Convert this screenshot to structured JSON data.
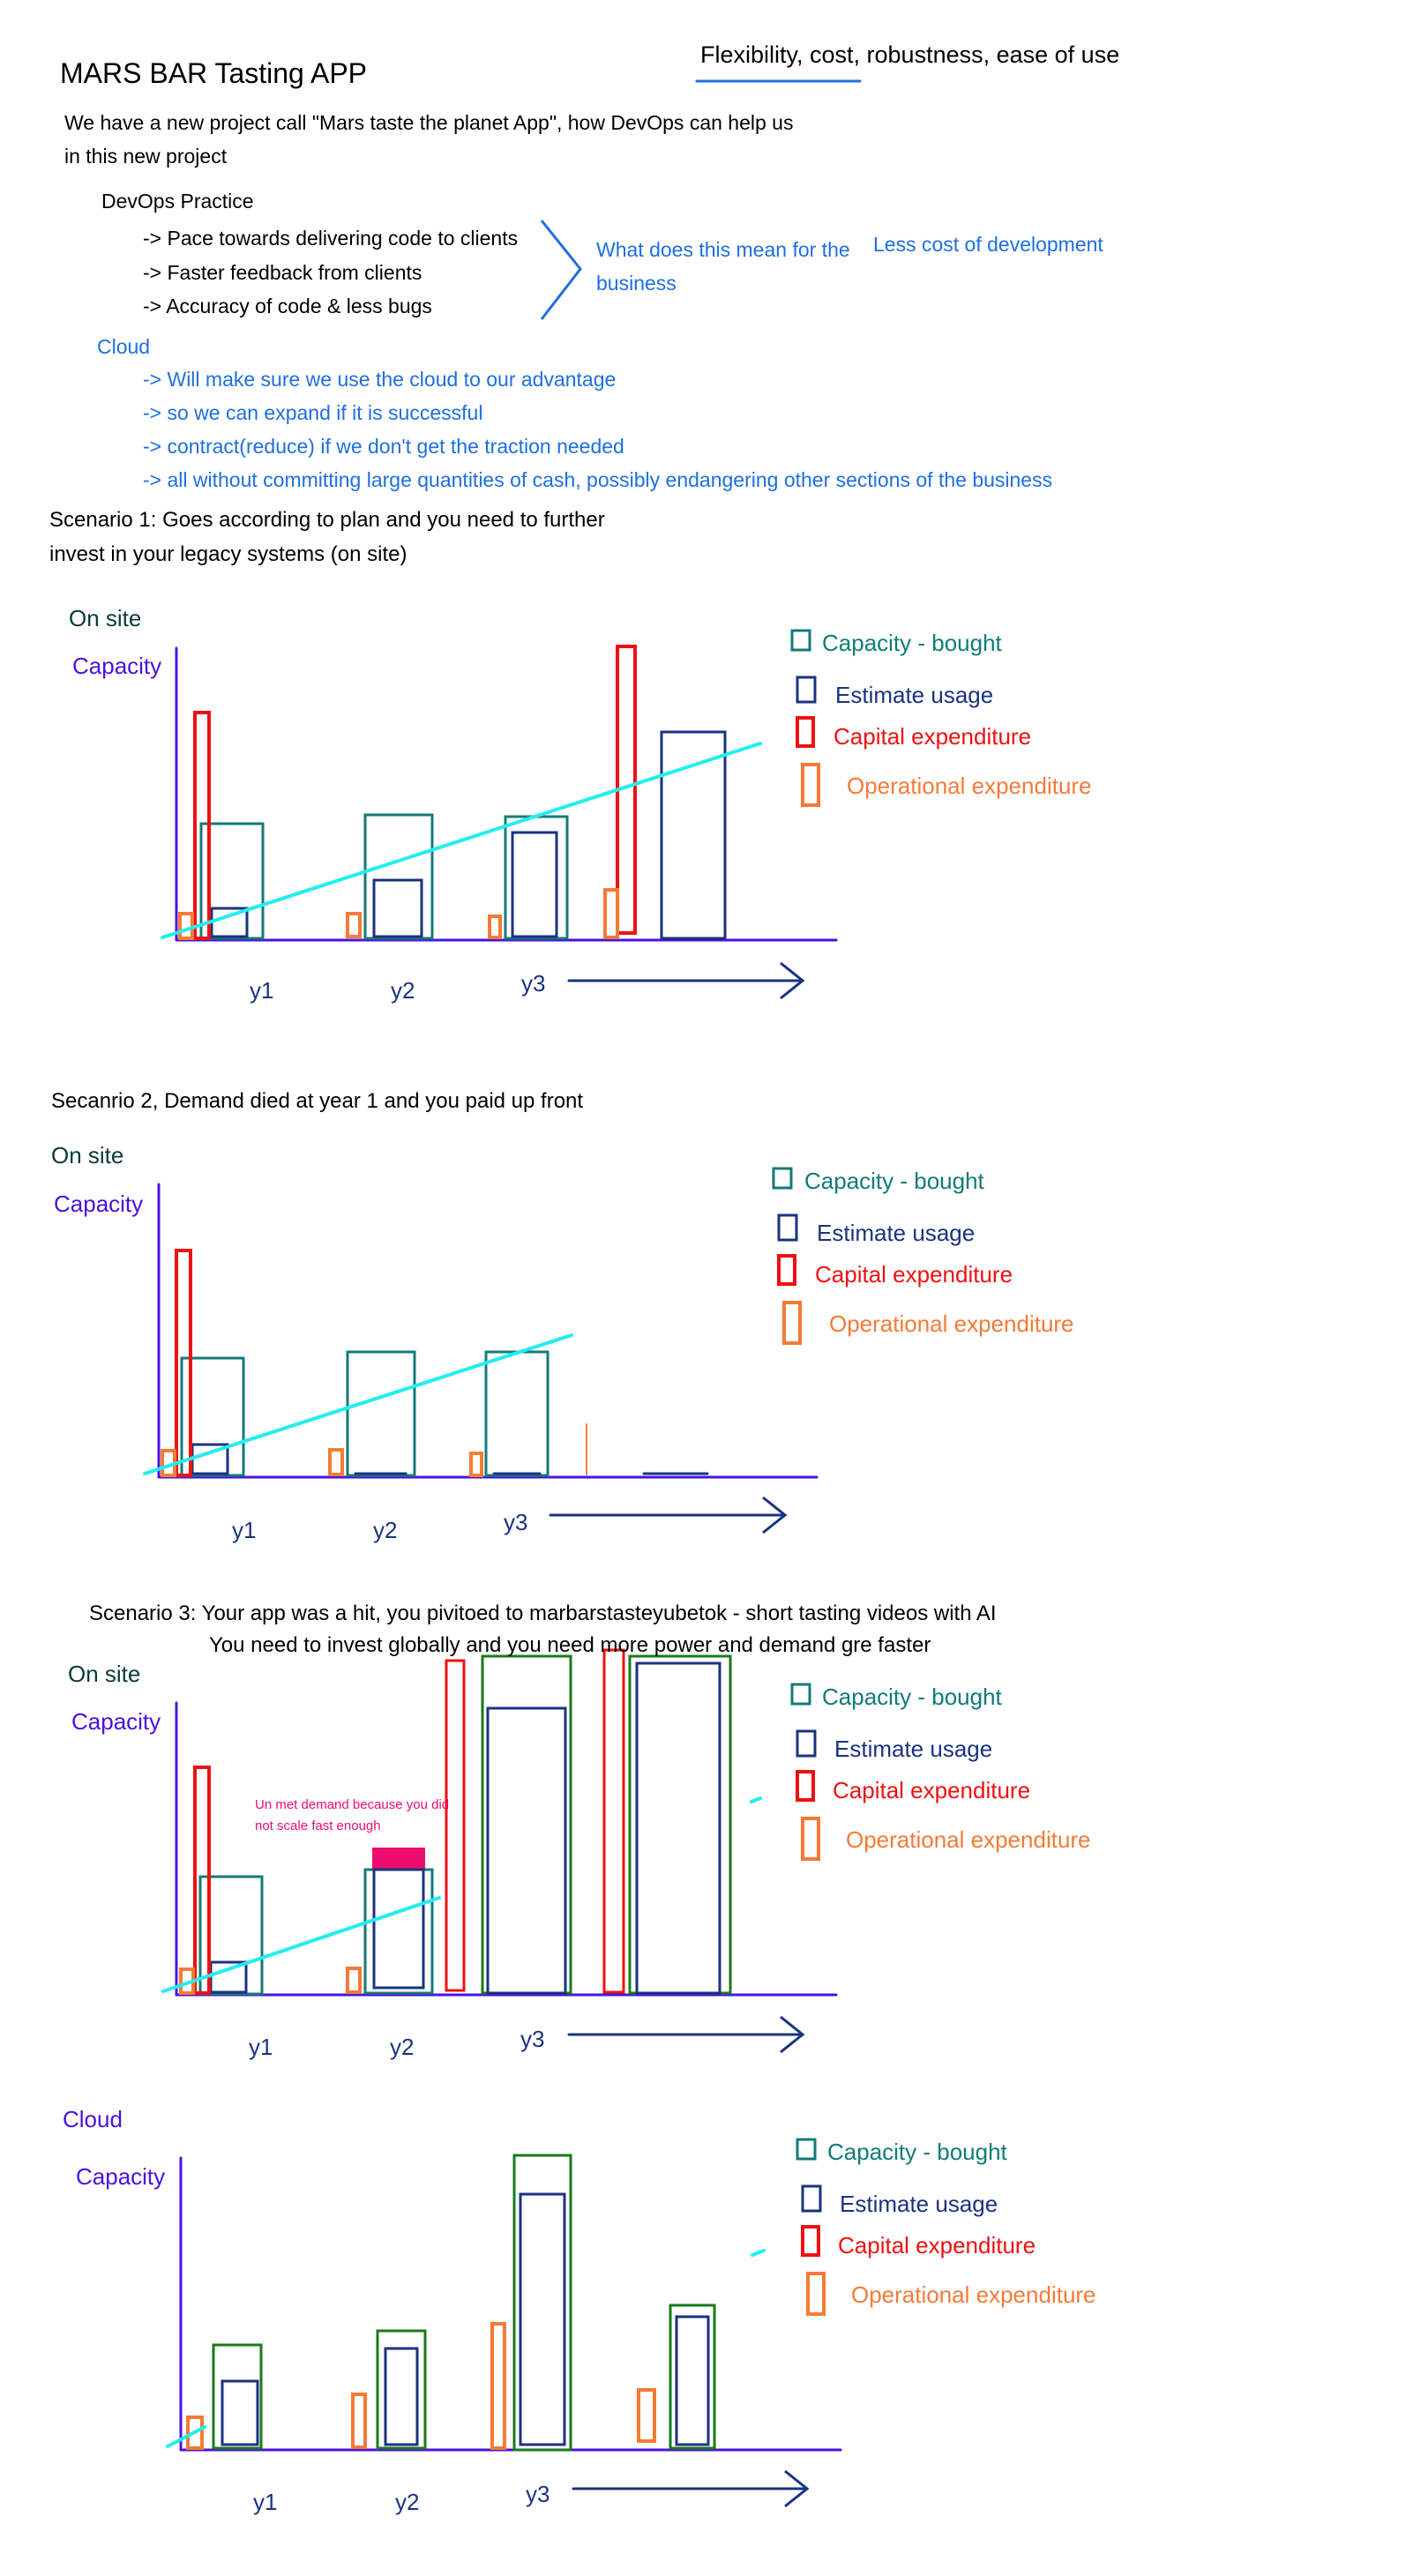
{
  "header": {
    "title": "MARS BAR Tasting APP",
    "top_note": "Flexibility, cost, robustness, ease of use"
  },
  "intro": {
    "line1": "We have a new project call \"Mars taste the planet App\", how DevOps can help us",
    "line2": "in this new project"
  },
  "devops": {
    "heading": "DevOps Practice",
    "bullets": [
      "-> Pace towards delivering code to clients",
      "-> Faster feedback from clients",
      "-> Accuracy of code & less bugs"
    ],
    "question_line1": "What does this mean for the",
    "question_line2": "business",
    "answer": "Less cost of development"
  },
  "cloud_section": {
    "heading": "Cloud",
    "bullets": [
      "-> Will make sure we use the cloud to our advantage",
      "-> so we can expand if it is successful",
      "-> contract(reduce) if we don't get the traction needed",
      "-> all without committing large quantities of cash, possibly endangering other sections of the business"
    ]
  },
  "legend": {
    "capacity_bought": "Capacity - bought",
    "estimate_usage": "Estimate usage",
    "capital_expenditure": "Capital expenditure",
    "operational_expenditure": "Operational expenditure"
  },
  "colors": {
    "capacity_bought": "#147a7a",
    "estimate_usage": "#1a3380",
    "capital_expenditure": "#ee1111",
    "operational_expenditure": "#f47b36",
    "trend_line": "#22eef0",
    "axis": "#4a12e0",
    "cloud_capacity": "#1a7a1a",
    "unmet_demand": "#ee0d6e"
  },
  "scenario1": {
    "title_line1": "Scenario 1: Goes according to plan and you need to further",
    "title_line2": "invest in your legacy systems (on site)",
    "label": "On site",
    "axis_label": "Capacity",
    "x_labels": [
      "y1",
      "y2",
      "y3"
    ]
  },
  "scenario2": {
    "title": "Secanrio 2, Demand died at year 1 and you paid up front",
    "label": "On site",
    "axis_label": "Capacity",
    "x_labels": [
      "y1",
      "y2",
      "y3"
    ]
  },
  "scenario3": {
    "title_line1": "Scenario 3: Your app was a hit, you pivitoed to marbarstasteyubetok - short tasting videos with AI",
    "title_line2": "You need to invest globally and you need more power and demand gre faster",
    "label": "On site",
    "axis_label": "Capacity",
    "note_line1": "Un met demand because you did",
    "note_line2": "not scale fast enough",
    "x_labels": [
      "y1",
      "y2",
      "y3"
    ]
  },
  "cloud_chart": {
    "label": "Cloud",
    "axis_label": "Capacity",
    "x_labels": [
      "y1",
      "y2",
      "y3"
    ]
  }
}
